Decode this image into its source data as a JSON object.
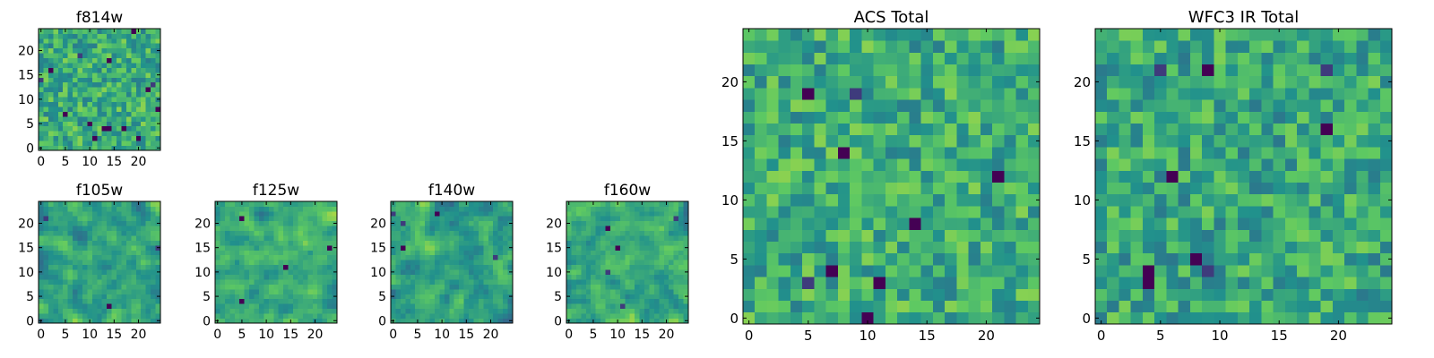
{
  "figure": {
    "colormap": "viridis",
    "colormap_stops": [
      "#440154",
      "#3b528b",
      "#21918c",
      "#5ec962",
      "#fde725"
    ],
    "background": "#ffffff",
    "axis_color": "#000000"
  },
  "chart_data": [
    {
      "type": "heatmap",
      "title": "f814w",
      "grid_size": [
        25,
        25
      ],
      "xlim": [
        -0.5,
        24.5
      ],
      "ylim": [
        -0.5,
        24.5
      ],
      "xticks": [
        0,
        5,
        10,
        15,
        20
      ],
      "yticks": [
        0,
        5,
        10,
        15,
        20
      ],
      "xtick_labels": [
        "0",
        "5",
        "10",
        "15",
        "20"
      ],
      "ytick_labels": [
        "0",
        "5",
        "10",
        "15",
        "20"
      ],
      "values": "noise-image (pixel values not legible)",
      "seed": 11,
      "smooth": 0,
      "mean": 0.62,
      "spread": 0.2,
      "dark_fraction": 0.025
    },
    {
      "type": "heatmap",
      "title": "f105w",
      "grid_size": [
        25,
        25
      ],
      "xlim": [
        -0.5,
        24.5
      ],
      "ylim": [
        -0.5,
        24.5
      ],
      "xticks": [
        0,
        5,
        10,
        15,
        20
      ],
      "yticks": [
        0,
        5,
        10,
        15,
        20
      ],
      "xtick_labels": [
        "0",
        "5",
        "10",
        "15",
        "20"
      ],
      "ytick_labels": [
        "0",
        "5",
        "10",
        "15",
        "20"
      ],
      "values": "noise-image (pixel values not legible)",
      "seed": 23,
      "smooth": 1,
      "mean": 0.6,
      "spread": 0.24,
      "dark_fraction": 0.004
    },
    {
      "type": "heatmap",
      "title": "f125w",
      "grid_size": [
        25,
        25
      ],
      "xlim": [
        -0.5,
        24.5
      ],
      "ylim": [
        -0.5,
        24.5
      ],
      "xticks": [
        0,
        5,
        10,
        15,
        20
      ],
      "yticks": [
        0,
        5,
        10,
        15,
        20
      ],
      "xtick_labels": [
        "0",
        "5",
        "10",
        "15",
        "20"
      ],
      "ytick_labels": [
        "0",
        "5",
        "10",
        "15",
        "20"
      ],
      "values": "noise-image (pixel values not legible)",
      "seed": 37,
      "smooth": 1,
      "mean": 0.62,
      "spread": 0.24,
      "dark_fraction": 0.006
    },
    {
      "type": "heatmap",
      "title": "f140w",
      "grid_size": [
        25,
        25
      ],
      "xlim": [
        -0.5,
        24.5
      ],
      "ylim": [
        -0.5,
        24.5
      ],
      "xticks": [
        0,
        5,
        10,
        15,
        20
      ],
      "yticks": [
        0,
        5,
        10,
        15,
        20
      ],
      "xtick_labels": [
        "0",
        "5",
        "10",
        "15",
        "20"
      ],
      "ytick_labels": [
        "0",
        "5",
        "10",
        "15",
        "20"
      ],
      "values": "noise-image (pixel values not legible)",
      "seed": 41,
      "smooth": 1,
      "mean": 0.58,
      "spread": 0.25,
      "dark_fraction": 0.008
    },
    {
      "type": "heatmap",
      "title": "f160w",
      "grid_size": [
        25,
        25
      ],
      "xlim": [
        -0.5,
        24.5
      ],
      "ylim": [
        -0.5,
        24.5
      ],
      "xticks": [
        0,
        5,
        10,
        15,
        20
      ],
      "yticks": [
        0,
        5,
        10,
        15,
        20
      ],
      "xtick_labels": [
        "0",
        "5",
        "10",
        "15",
        "20"
      ],
      "ytick_labels": [
        "0",
        "5",
        "10",
        "15",
        "20"
      ],
      "values": "noise-image (pixel values not legible)",
      "seed": 53,
      "smooth": 1,
      "mean": 0.6,
      "spread": 0.24,
      "dark_fraction": 0.008
    },
    {
      "type": "heatmap",
      "title": "ACS Total",
      "grid_size": [
        25,
        25
      ],
      "xlim": [
        -0.5,
        24.5
      ],
      "ylim": [
        -0.5,
        24.5
      ],
      "xticks": [
        0,
        5,
        10,
        15,
        20
      ],
      "yticks": [
        0,
        5,
        10,
        15,
        20
      ],
      "xtick_labels": [
        "0",
        "5",
        "10",
        "15",
        "20"
      ],
      "ytick_labels": [
        "0",
        "5",
        "10",
        "15",
        "20"
      ],
      "values": "noise-image (pixel values not legible)",
      "seed": 67,
      "smooth": 0,
      "mean": 0.62,
      "spread": 0.2,
      "dark_fraction": 0.015
    },
    {
      "type": "heatmap",
      "title": "WFC3 IR Total",
      "grid_size": [
        25,
        25
      ],
      "xlim": [
        -0.5,
        24.5
      ],
      "ylim": [
        -0.5,
        24.5
      ],
      "xticks": [
        0,
        5,
        10,
        15,
        20
      ],
      "yticks": [
        0,
        5,
        10,
        15,
        20
      ],
      "xtick_labels": [
        "0",
        "5",
        "10",
        "15",
        "20"
      ],
      "ytick_labels": [
        "0",
        "5",
        "10",
        "15",
        "20"
      ],
      "values": "noise-image (pixel values not legible)",
      "seed": 79,
      "smooth": 0,
      "mean": 0.6,
      "spread": 0.2,
      "dark_fraction": 0.015
    }
  ]
}
